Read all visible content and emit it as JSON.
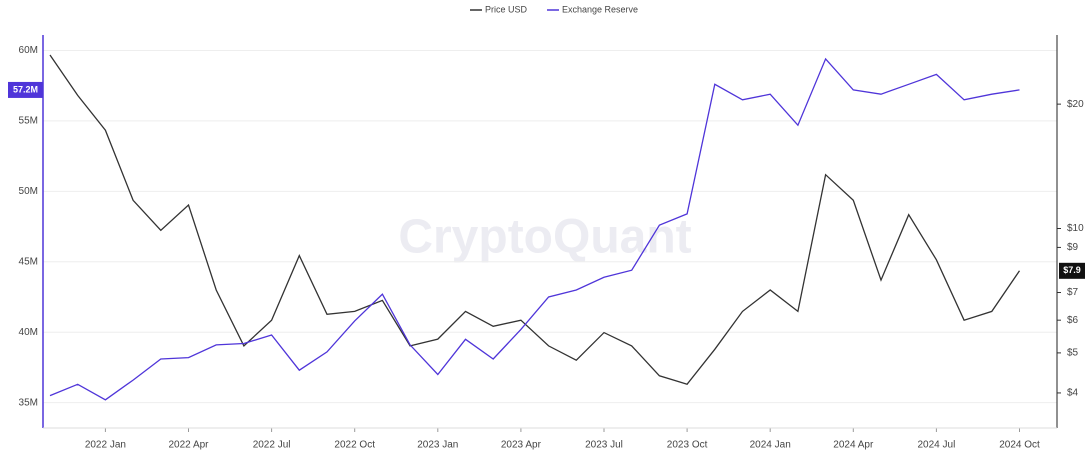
{
  "chart_data": {
    "type": "line",
    "watermark": "CryptoQuant",
    "legend": "top",
    "categories": [
      "2021-11",
      "2021-12",
      "2022-01",
      "2022-02",
      "2022-03",
      "2022-04",
      "2022-05",
      "2022-06",
      "2022-07",
      "2022-08",
      "2022-09",
      "2022-10",
      "2022-11",
      "2022-12",
      "2023-01",
      "2023-02",
      "2023-03",
      "2023-04",
      "2023-05",
      "2023-06",
      "2023-07",
      "2023-08",
      "2023-09",
      "2023-10",
      "2023-11",
      "2023-12",
      "2024-01",
      "2024-02",
      "2024-03",
      "2024-04",
      "2024-05",
      "2024-06",
      "2024-07",
      "2024-08",
      "2024-09",
      "2024-10"
    ],
    "xticks": [
      {
        "value": "2022-01",
        "label": "2022 Jan"
      },
      {
        "value": "2022-04",
        "label": "2022 Apr"
      },
      {
        "value": "2022-07",
        "label": "2022 Jul"
      },
      {
        "value": "2022-10",
        "label": "2022 Oct"
      },
      {
        "value": "2023-01",
        "label": "2023 Jan"
      },
      {
        "value": "2023-04",
        "label": "2023 Apr"
      },
      {
        "value": "2023-07",
        "label": "2023 Jul"
      },
      {
        "value": "2023-10",
        "label": "2023 Oct"
      },
      {
        "value": "2024-01",
        "label": "2024 Jan"
      },
      {
        "value": "2024-04",
        "label": "2024 Apr"
      },
      {
        "value": "2024-07",
        "label": "2024 Jul"
      },
      {
        "value": "2024-10",
        "label": "2024 Oct"
      }
    ],
    "ylim": [
      33.2,
      61.1
    ],
    "yticks": [
      {
        "value": 35,
        "label": "35M"
      },
      {
        "value": 40,
        "label": "40M"
      },
      {
        "value": 45,
        "label": "45M"
      },
      {
        "value": 50,
        "label": "50M"
      },
      {
        "value": 55,
        "label": "55M"
      },
      {
        "value": 60,
        "label": "60M"
      }
    ],
    "y2lim": [
      3.29,
      29.4
    ],
    "y2log": true,
    "y2ticks": [
      {
        "value": 4,
        "label": "$4"
      },
      {
        "value": 5,
        "label": "$5"
      },
      {
        "value": 6,
        "label": "$6"
      },
      {
        "value": 7,
        "label": "$7"
      },
      {
        "value": 9,
        "label": "$9"
      },
      {
        "value": 10,
        "label": "$10"
      },
      {
        "value": 20,
        "label": "$20"
      }
    ],
    "grid": true,
    "series": [
      {
        "name": "Price USD",
        "color": "#333333",
        "axis": "y2",
        "last_label": "$7.9",
        "values": [
          26.3,
          21.0,
          17.3,
          11.7,
          9.9,
          11.4,
          7.1,
          5.2,
          6.0,
          8.6,
          6.2,
          6.3,
          6.7,
          5.2,
          5.4,
          6.3,
          5.8,
          6.0,
          5.2,
          4.8,
          5.6,
          5.2,
          4.4,
          4.2,
          5.1,
          6.3,
          7.1,
          6.3,
          13.5,
          11.7,
          7.5,
          10.8,
          8.4,
          6.0,
          6.3,
          7.9
        ]
      },
      {
        "name": "Exchange Reserve",
        "color": "#4f35d9",
        "axis": "y",
        "last_label": "57.2M",
        "values": [
          35.5,
          36.3,
          35.2,
          36.6,
          38.1,
          38.2,
          39.1,
          39.2,
          39.8,
          37.3,
          38.6,
          40.8,
          42.7,
          39.1,
          37.0,
          39.5,
          38.1,
          40.2,
          42.5,
          43.0,
          43.9,
          44.4,
          47.6,
          48.4,
          57.6,
          56.5,
          56.9,
          54.7,
          59.4,
          57.2,
          56.9,
          57.6,
          58.3,
          56.5,
          56.9,
          57.2
        ]
      }
    ]
  }
}
